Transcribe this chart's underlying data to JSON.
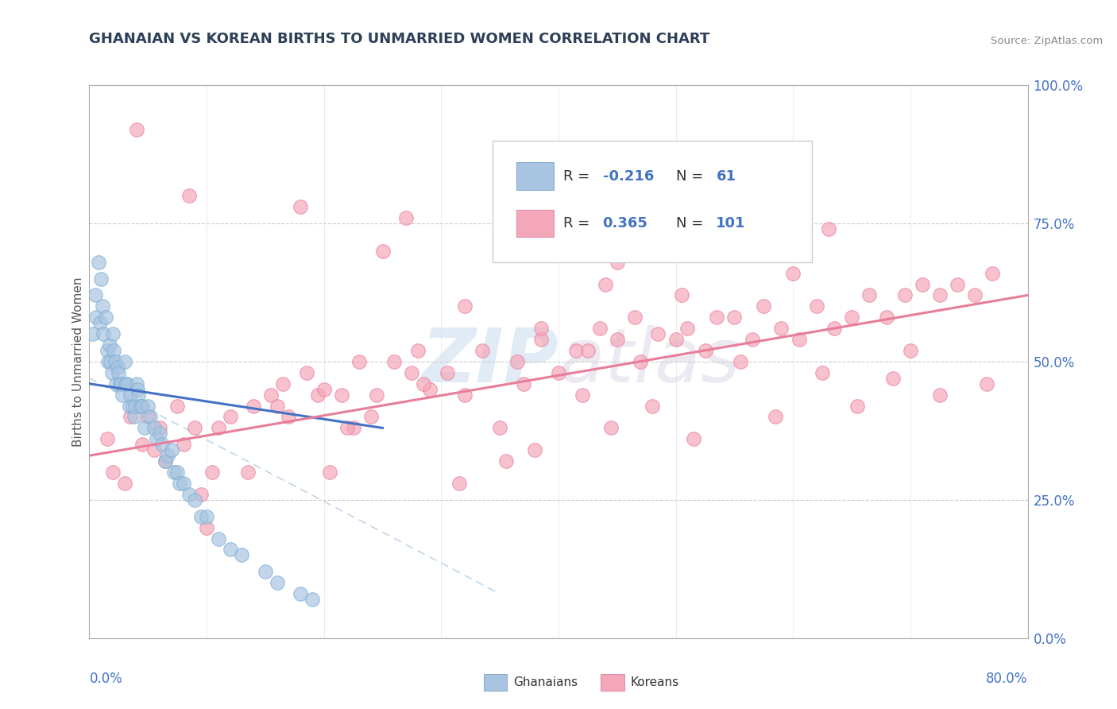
{
  "title": "GHANAIAN VS KOREAN BIRTHS TO UNMARRIED WOMEN CORRELATION CHART",
  "source": "Source: ZipAtlas.com",
  "ylabel": "Births to Unmarried Women",
  "ytick_vals": [
    0,
    25,
    50,
    75,
    100
  ],
  "xmin": 0,
  "xmax": 80,
  "ymin": 0,
  "ymax": 100,
  "legend_line1": "R = -0.216   N =   61",
  "legend_line2": "R =  0.365   N = 101",
  "ghanaian_color": "#a8c4e0",
  "korean_color": "#f4a7b9",
  "ghanaian_edge": "#7aadd4",
  "korean_edge": "#e87d9a",
  "blue_line_color": "#4472c4",
  "pink_line_color": "#e87d9a",
  "title_color": "#2e4057",
  "axis_label_color": "#4472c4",
  "watermark": "ZIPatlas",
  "ghanaian_x": [
    0.3,
    0.5,
    0.6,
    0.8,
    0.9,
    1.0,
    1.1,
    1.2,
    1.4,
    1.5,
    1.6,
    1.7,
    1.8,
    1.9,
    2.0,
    2.1,
    2.2,
    2.3,
    2.4,
    2.5,
    2.6,
    2.7,
    2.8,
    3.0,
    3.1,
    3.2,
    3.4,
    3.5,
    3.7,
    3.8,
    3.9,
    4.0,
    4.1,
    4.2,
    4.4,
    4.5,
    4.7,
    5.0,
    5.2,
    5.5,
    5.7,
    6.0,
    6.2,
    6.5,
    6.7,
    7.0,
    7.2,
    7.5,
    7.7,
    8.0,
    8.5,
    9.0,
    9.5,
    10.0,
    11.0,
    12.0,
    13.0,
    15.0,
    16.0,
    18.0,
    19.0
  ],
  "ghanaian_y": [
    55,
    62,
    58,
    68,
    57,
    65,
    60,
    55,
    58,
    52,
    50,
    53,
    50,
    48,
    55,
    52,
    50,
    46,
    49,
    48,
    46,
    46,
    44,
    50,
    46,
    46,
    42,
    44,
    42,
    40,
    42,
    46,
    45,
    44,
    42,
    42,
    38,
    42,
    40,
    38,
    36,
    37,
    35,
    32,
    33,
    34,
    30,
    30,
    28,
    28,
    26,
    25,
    22,
    22,
    18,
    16,
    15,
    12,
    10,
    8,
    7
  ],
  "korean_x": [
    1.5,
    2.0,
    3.5,
    4.5,
    5.0,
    6.0,
    7.5,
    8.0,
    9.0,
    10.5,
    11.0,
    12.0,
    14.0,
    15.5,
    16.5,
    17.0,
    18.5,
    19.5,
    20.0,
    21.5,
    22.5,
    23.0,
    24.5,
    26.0,
    27.5,
    28.0,
    29.0,
    30.5,
    32.0,
    33.5,
    35.0,
    36.5,
    37.0,
    38.5,
    40.0,
    41.5,
    42.5,
    43.5,
    45.0,
    46.5,
    47.0,
    48.5,
    50.0,
    51.0,
    52.5,
    53.5,
    55.0,
    56.5,
    57.5,
    59.0,
    60.5,
    62.0,
    63.5,
    65.0,
    66.5,
    68.0,
    69.5,
    71.0,
    72.5,
    74.0,
    75.5,
    77.0,
    3.0,
    6.5,
    10.0,
    13.5,
    20.5,
    24.0,
    31.5,
    38.0,
    44.5,
    51.5,
    58.5,
    65.5,
    72.5,
    5.5,
    9.5,
    16.0,
    22.0,
    28.5,
    35.5,
    42.0,
    48.0,
    55.5,
    62.5,
    70.0,
    76.5,
    4.0,
    8.5,
    25.0,
    45.0,
    54.0,
    63.0,
    32.0,
    18.0,
    44.0,
    60.0,
    38.5,
    27.0,
    50.5,
    68.5
  ],
  "korean_y": [
    36,
    30,
    40,
    35,
    40,
    38,
    42,
    35,
    38,
    30,
    38,
    40,
    42,
    44,
    46,
    40,
    48,
    44,
    45,
    44,
    38,
    50,
    44,
    50,
    48,
    52,
    45,
    48,
    44,
    52,
    38,
    50,
    46,
    54,
    48,
    52,
    52,
    56,
    54,
    58,
    50,
    55,
    54,
    56,
    52,
    58,
    58,
    54,
    60,
    56,
    54,
    60,
    56,
    58,
    62,
    58,
    62,
    64,
    62,
    64,
    62,
    66,
    28,
    32,
    20,
    30,
    30,
    40,
    28,
    34,
    38,
    36,
    40,
    42,
    44,
    34,
    26,
    42,
    38,
    46,
    32,
    44,
    42,
    50,
    48,
    52,
    46,
    92,
    80,
    70,
    68,
    72,
    74,
    60,
    78,
    64,
    66,
    56,
    76,
    62,
    47
  ]
}
